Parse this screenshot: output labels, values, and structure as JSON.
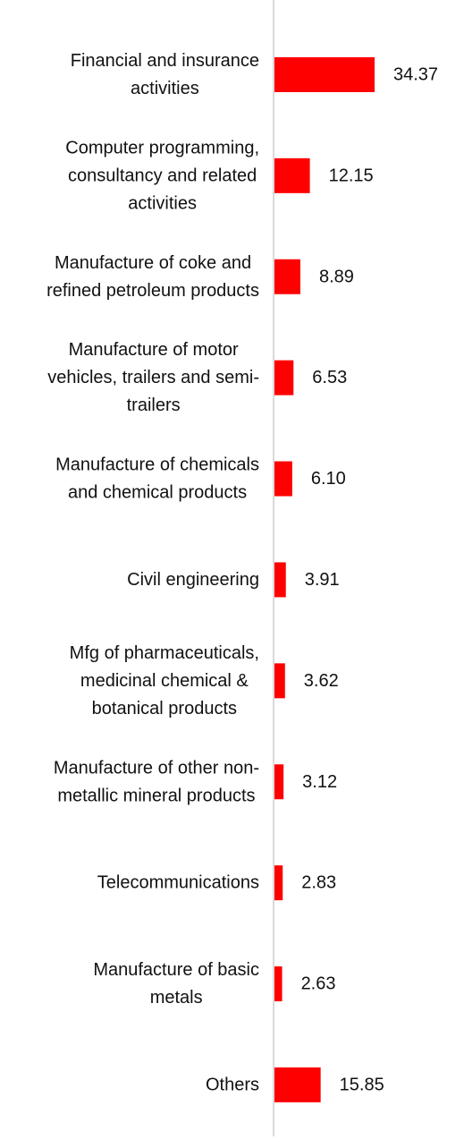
{
  "chart_data": {
    "type": "bar",
    "orientation": "horizontal",
    "title": "",
    "xlabel": "",
    "ylabel": "",
    "categories": [
      [
        "Financial and insurance",
        "activities"
      ],
      [
        "Computer programming,",
        "consultancy and related",
        "activities"
      ],
      [
        "Manufacture of coke and",
        "refined petroleum products"
      ],
      [
        "Manufacture of motor",
        "vehicles, trailers and semi-",
        "trailers"
      ],
      [
        "Manufacture of chemicals",
        "and chemical products"
      ],
      [
        "Civil engineering"
      ],
      [
        "Mfg of pharmaceuticals,",
        "medicinal chemical &",
        "botanical products"
      ],
      [
        "Manufacture of other non-",
        "metallic mineral products"
      ],
      [
        "Telecommunications"
      ],
      [
        "Manufacture of basic",
        "metals"
      ],
      [
        "Others"
      ]
    ],
    "values": [
      34.37,
      12.15,
      8.89,
      6.53,
      6.1,
      3.91,
      3.62,
      3.12,
      2.83,
      2.63,
      15.85
    ],
    "value_labels": [
      "34.37",
      "12.15",
      "8.89",
      "6.53",
      "6.10",
      "3.91",
      "3.62",
      "3.12",
      "2.83",
      "2.63",
      "15.85"
    ],
    "xlim": [
      0,
      34.37
    ],
    "grid": false,
    "legend": "none",
    "bar_color": "#ff0000",
    "axis_color": "#d9d9d9"
  }
}
